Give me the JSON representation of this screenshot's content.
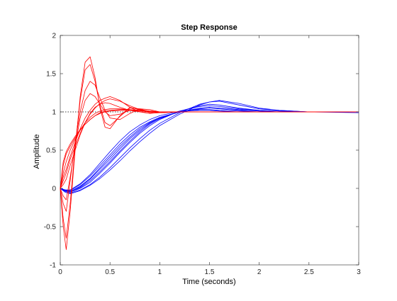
{
  "chart_data": {
    "type": "line",
    "title": "Step Response",
    "xlabel": "Time (seconds)",
    "ylabel": "Amplitude",
    "xlim": [
      0,
      3
    ],
    "ylim": [
      -1,
      2
    ],
    "xticks": [
      0,
      0.5,
      1,
      1.5,
      2,
      2.5,
      3
    ],
    "xtick_labels": [
      "0",
      "0.5",
      "1",
      "1.5",
      "2",
      "2.5",
      "3"
    ],
    "yticks": [
      -1,
      -0.5,
      0,
      0.5,
      1,
      1.5,
      2
    ],
    "ytick_labels": [
      "-1",
      "-0.5",
      "0",
      "0.5",
      "1",
      "1.5",
      "2"
    ],
    "grid": false,
    "reference_line": {
      "y": 1,
      "style": "dotted",
      "color": "#000000"
    },
    "series": [
      {
        "color": "#0000ff",
        "x": [
          0,
          0.05,
          0.1,
          0.2,
          0.3,
          0.4,
          0.5,
          0.6,
          0.7,
          0.8,
          0.9,
          1.0,
          1.2,
          1.4,
          1.5,
          1.6,
          1.8,
          2.0,
          2.2,
          2.5,
          3.0
        ],
        "values": [
          0,
          -0.02,
          -0.04,
          0.02,
          0.12,
          0.25,
          0.38,
          0.52,
          0.65,
          0.76,
          0.85,
          0.92,
          1.0,
          1.04,
          1.05,
          1.04,
          1.02,
          1.01,
          1.0,
          1.0,
          1.0
        ]
      },
      {
        "color": "#0000ff",
        "x": [
          0,
          0.05,
          0.1,
          0.2,
          0.3,
          0.4,
          0.5,
          0.6,
          0.7,
          0.8,
          0.9,
          1.0,
          1.2,
          1.4,
          1.5,
          1.6,
          1.8,
          2.0,
          2.2,
          2.5,
          3.0
        ],
        "values": [
          0,
          -0.03,
          -0.05,
          0.0,
          0.08,
          0.2,
          0.33,
          0.47,
          0.6,
          0.72,
          0.82,
          0.9,
          1.01,
          1.08,
          1.1,
          1.09,
          1.05,
          1.02,
          1.01,
          1.0,
          1.0
        ]
      },
      {
        "color": "#0000ff",
        "x": [
          0,
          0.05,
          0.1,
          0.2,
          0.3,
          0.4,
          0.5,
          0.6,
          0.7,
          0.8,
          0.9,
          1.0,
          1.2,
          1.4,
          1.5,
          1.6,
          1.8,
          2.0,
          2.2,
          2.5,
          3.0
        ],
        "values": [
          0,
          -0.02,
          -0.03,
          0.05,
          0.16,
          0.3,
          0.44,
          0.58,
          0.7,
          0.8,
          0.87,
          0.93,
          1.0,
          1.03,
          1.03,
          1.02,
          1.01,
          1.0,
          1.0,
          1.0,
          1.0
        ]
      },
      {
        "color": "#0000ff",
        "x": [
          0,
          0.05,
          0.1,
          0.2,
          0.3,
          0.4,
          0.5,
          0.6,
          0.7,
          0.8,
          0.9,
          1.0,
          1.2,
          1.4,
          1.5,
          1.6,
          1.8,
          2.0,
          2.2,
          2.5,
          3.0
        ],
        "values": [
          0,
          -0.04,
          -0.06,
          -0.02,
          0.05,
          0.15,
          0.27,
          0.4,
          0.53,
          0.65,
          0.76,
          0.85,
          0.99,
          1.1,
          1.13,
          1.14,
          1.09,
          1.04,
          1.02,
          1.0,
          1.0
        ]
      },
      {
        "color": "#0000ff",
        "x": [
          0,
          0.05,
          0.1,
          0.2,
          0.3,
          0.4,
          0.5,
          0.6,
          0.7,
          0.8,
          0.9,
          1.0,
          1.2,
          1.4,
          1.5,
          1.6,
          1.8,
          2.0,
          2.2,
          2.5,
          3.0
        ],
        "values": [
          0,
          -0.03,
          -0.04,
          0.03,
          0.13,
          0.27,
          0.41,
          0.55,
          0.67,
          0.78,
          0.86,
          0.92,
          1.0,
          1.05,
          1.06,
          1.05,
          1.03,
          1.01,
          1.0,
          1.0,
          1.0
        ]
      },
      {
        "color": "#0000ff",
        "x": [
          0,
          0.05,
          0.1,
          0.2,
          0.3,
          0.4,
          0.5,
          0.6,
          0.7,
          0.8,
          0.9,
          1.0,
          1.2,
          1.4,
          1.5,
          1.6,
          1.8,
          2.0,
          2.2,
          2.5,
          3.0
        ],
        "values": [
          0,
          -0.05,
          -0.07,
          -0.03,
          0.04,
          0.13,
          0.24,
          0.36,
          0.49,
          0.61,
          0.72,
          0.82,
          0.97,
          1.09,
          1.13,
          1.15,
          1.11,
          1.05,
          1.02,
          1.0,
          0.99
        ]
      },
      {
        "color": "#0000ff",
        "x": [
          0,
          0.05,
          0.1,
          0.2,
          0.3,
          0.4,
          0.5,
          0.6,
          0.7,
          0.8,
          0.9,
          1.0,
          1.2,
          1.4,
          1.5,
          1.6,
          1.8,
          2.0,
          2.2,
          2.5,
          3.0
        ],
        "values": [
          0,
          -0.02,
          -0.02,
          0.06,
          0.18,
          0.33,
          0.48,
          0.62,
          0.74,
          0.83,
          0.9,
          0.95,
          1.01,
          1.02,
          1.02,
          1.01,
          1.0,
          1.0,
          1.0,
          1.0,
          1.0
        ]
      },
      {
        "color": "#0000ff",
        "x": [
          0,
          0.05,
          0.1,
          0.2,
          0.3,
          0.4,
          0.5,
          0.6,
          0.7,
          0.8,
          0.9,
          1.0,
          1.2,
          1.4,
          1.5,
          1.6,
          1.8,
          2.0,
          2.2,
          2.5,
          3.0
        ],
        "values": [
          0,
          -0.03,
          -0.05,
          0.01,
          0.1,
          0.22,
          0.35,
          0.49,
          0.62,
          0.74,
          0.84,
          0.91,
          1.01,
          1.07,
          1.08,
          1.07,
          1.04,
          1.02,
          1.01,
          1.0,
          1.0
        ]
      },
      {
        "color": "#ff0000",
        "x": [
          0,
          0.03,
          0.06,
          0.1,
          0.15,
          0.2,
          0.25,
          0.3,
          0.35,
          0.4,
          0.45,
          0.5,
          0.6,
          0.7,
          0.8,
          0.9,
          1.0,
          1.2,
          1.5,
          2.0,
          3.0
        ],
        "values": [
          0,
          -0.5,
          -0.8,
          -0.3,
          0.5,
          1.2,
          1.65,
          1.72,
          1.45,
          1.05,
          0.8,
          0.78,
          0.95,
          1.06,
          1.03,
          0.99,
          1.0,
          1.0,
          1.0,
          1.0,
          1.0
        ]
      },
      {
        "color": "#ff0000",
        "x": [
          0,
          0.03,
          0.06,
          0.1,
          0.15,
          0.2,
          0.25,
          0.3,
          0.35,
          0.4,
          0.45,
          0.5,
          0.6,
          0.7,
          0.8,
          0.9,
          1.0,
          1.2,
          1.5,
          2.0,
          3.0
        ],
        "values": [
          0,
          -0.4,
          -0.65,
          -0.2,
          0.55,
          1.15,
          1.55,
          1.62,
          1.4,
          1.08,
          0.86,
          0.82,
          0.94,
          1.05,
          1.04,
          1.0,
          0.99,
          1.0,
          1.0,
          1.0,
          1.0
        ]
      },
      {
        "color": "#ff0000",
        "x": [
          0,
          0.03,
          0.06,
          0.1,
          0.15,
          0.2,
          0.25,
          0.3,
          0.35,
          0.4,
          0.45,
          0.5,
          0.6,
          0.7,
          0.8,
          0.9,
          1.0,
          1.2,
          1.5,
          2.0,
          3.0
        ],
        "values": [
          0,
          -0.2,
          -0.3,
          0.1,
          0.6,
          1.0,
          1.28,
          1.4,
          1.35,
          1.18,
          1.02,
          0.92,
          0.9,
          0.98,
          1.04,
          1.03,
          1.0,
          1.0,
          1.0,
          1.0,
          1.0
        ]
      },
      {
        "color": "#ff0000",
        "x": [
          0,
          0.03,
          0.06,
          0.1,
          0.15,
          0.2,
          0.25,
          0.3,
          0.35,
          0.4,
          0.45,
          0.5,
          0.6,
          0.7,
          0.8,
          0.9,
          1.0,
          1.2,
          1.5,
          2.0,
          3.0
        ],
        "values": [
          0,
          0.15,
          0.25,
          0.42,
          0.6,
          0.78,
          0.92,
          1.02,
          1.1,
          1.15,
          1.18,
          1.2,
          1.15,
          1.06,
          1.0,
          0.98,
          0.99,
          1.0,
          1.0,
          1.0,
          1.0
        ]
      },
      {
        "color": "#ff0000",
        "x": [
          0,
          0.03,
          0.06,
          0.1,
          0.15,
          0.2,
          0.25,
          0.3,
          0.35,
          0.4,
          0.45,
          0.5,
          0.6,
          0.7,
          0.8,
          0.9,
          1.0,
          1.2,
          1.5,
          2.0,
          3.0
        ],
        "values": [
          0,
          0.1,
          0.2,
          0.38,
          0.55,
          0.72,
          0.86,
          0.97,
          1.05,
          1.11,
          1.15,
          1.17,
          1.14,
          1.08,
          1.03,
          1.0,
          0.99,
          1.0,
          1.0,
          1.0,
          1.0
        ]
      },
      {
        "color": "#ff0000",
        "x": [
          0,
          0.03,
          0.06,
          0.1,
          0.15,
          0.2,
          0.25,
          0.3,
          0.35,
          0.4,
          0.45,
          0.5,
          0.6,
          0.7,
          0.8,
          0.9,
          1.0,
          1.2,
          1.5,
          2.0,
          3.0
        ],
        "values": [
          0,
          0.35,
          0.48,
          0.58,
          0.68,
          0.77,
          0.84,
          0.9,
          0.95,
          0.98,
          1.0,
          1.01,
          1.02,
          1.02,
          1.01,
          1.01,
          1.0,
          1.0,
          1.0,
          1.0,
          1.0
        ]
      },
      {
        "color": "#ff0000",
        "x": [
          0,
          0.03,
          0.06,
          0.1,
          0.15,
          0.2,
          0.25,
          0.3,
          0.35,
          0.4,
          0.45,
          0.5,
          0.6,
          0.7,
          0.8,
          0.9,
          1.0,
          1.2,
          1.5,
          2.0,
          3.0
        ],
        "values": [
          0,
          0.3,
          0.45,
          0.55,
          0.66,
          0.76,
          0.84,
          0.9,
          0.95,
          0.99,
          1.01,
          1.02,
          1.03,
          1.03,
          1.02,
          1.01,
          1.0,
          1.0,
          1.0,
          1.0,
          1.0
        ]
      },
      {
        "color": "#ff0000",
        "x": [
          0,
          0.03,
          0.06,
          0.1,
          0.15,
          0.2,
          0.25,
          0.3,
          0.35,
          0.4,
          0.45,
          0.5,
          0.6,
          0.7,
          0.8,
          0.9,
          1.0,
          1.2,
          1.5,
          2.0,
          3.0
        ],
        "values": [
          0,
          0.2,
          0.35,
          0.5,
          0.64,
          0.76,
          0.86,
          0.93,
          0.98,
          1.01,
          1.03,
          1.04,
          1.04,
          1.03,
          1.02,
          1.01,
          1.0,
          1.0,
          1.0,
          1.0,
          1.0
        ]
      },
      {
        "color": "#ff0000",
        "x": [
          0,
          0.03,
          0.06,
          0.1,
          0.15,
          0.2,
          0.25,
          0.3,
          0.35,
          0.4,
          0.45,
          0.5,
          0.6,
          0.7,
          0.8,
          0.9,
          1.0,
          1.2,
          1.5,
          2.0,
          3.0
        ],
        "values": [
          0,
          0.05,
          0.12,
          0.3,
          0.5,
          0.7,
          0.86,
          0.98,
          1.06,
          1.1,
          1.12,
          1.11,
          1.06,
          1.02,
          1.0,
          1.0,
          1.0,
          1.0,
          1.0,
          1.0,
          1.0
        ]
      },
      {
        "color": "#ff0000",
        "x": [
          0,
          0.03,
          0.06,
          0.1,
          0.15,
          0.2,
          0.25,
          0.3,
          0.35,
          0.4,
          0.45,
          0.5,
          0.6,
          0.7,
          0.8,
          0.9,
          1.0,
          1.2,
          1.5,
          2.0,
          3.0
        ],
        "values": [
          0,
          -0.1,
          -0.15,
          0.15,
          0.55,
          0.92,
          1.15,
          1.24,
          1.2,
          1.1,
          1.0,
          0.95,
          0.97,
          1.02,
          1.03,
          1.01,
          1.0,
          1.0,
          1.0,
          1.0,
          1.0
        ]
      }
    ]
  }
}
